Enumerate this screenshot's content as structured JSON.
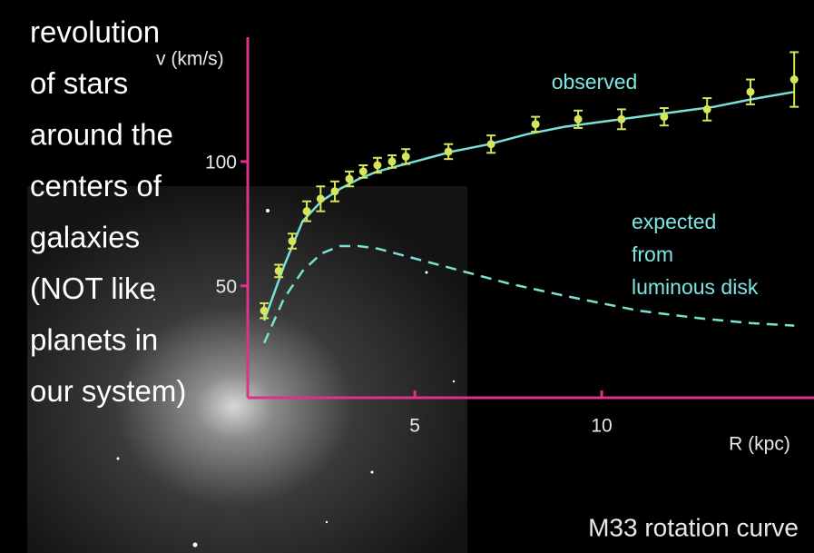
{
  "chart_data": {
    "type": "scatter",
    "ylabel": "v (km/s)",
    "xlabel": "R (kpc)",
    "caption": "M33 rotation curve",
    "xlim": [
      0.53,
      15.68
    ],
    "ylim": [
      5,
      150
    ],
    "xticks": [
      5,
      10
    ],
    "yticks": [
      50,
      100
    ],
    "axis_color": "#e0308a",
    "series": [
      {
        "name": "observed",
        "color": "#d6e65a",
        "line_color": "#78e2d4",
        "x": [
          0.97,
          1.36,
          1.72,
          2.11,
          2.48,
          2.86,
          3.25,
          3.62,
          4.0,
          4.39,
          4.76,
          5.9,
          7.04,
          8.23,
          9.37,
          10.53,
          11.67,
          12.82,
          13.98,
          15.15
        ],
        "values": [
          40,
          56,
          68,
          80,
          85,
          88,
          93,
          96,
          98.5,
          100,
          102,
          104,
          107,
          115,
          117,
          117,
          118,
          121,
          128,
          133
        ],
        "errors": [
          3,
          2.5,
          3,
          4,
          5,
          4,
          3,
          2.5,
          3,
          2.5,
          3,
          3,
          3.5,
          3,
          3.5,
          4,
          3.5,
          4.5,
          5,
          11
        ],
        "fit_x": [
          0.97,
          1.5,
          2,
          2.5,
          3,
          3.5,
          4,
          5,
          6,
          7,
          8,
          9,
          10,
          11,
          12,
          13,
          14,
          15.15
        ],
        "fit": [
          36,
          58,
          76,
          84,
          89,
          93,
          96,
          100,
          104,
          107,
          111,
          114,
          116,
          118,
          120,
          122,
          125,
          128
        ]
      },
      {
        "name_lines": [
          "expected",
          "from",
          "luminous disk"
        ],
        "color": "#78e2d4",
        "dashed": true,
        "x": [
          0.97,
          1.5,
          2,
          2.5,
          3,
          3.5,
          4,
          5,
          6,
          7.5,
          9,
          10,
          11,
          12.6,
          14,
          15.15
        ],
        "values": [
          27,
          45,
          56,
          63,
          66,
          66,
          65,
          61,
          57,
          51,
          46,
          43,
          40,
          37,
          35,
          34
        ]
      }
    ]
  },
  "side_text": [
    "revolution",
    "of stars",
    "around the",
    "centers of",
    "galaxies",
    "(NOT like",
    "planets in",
    "our system)"
  ]
}
